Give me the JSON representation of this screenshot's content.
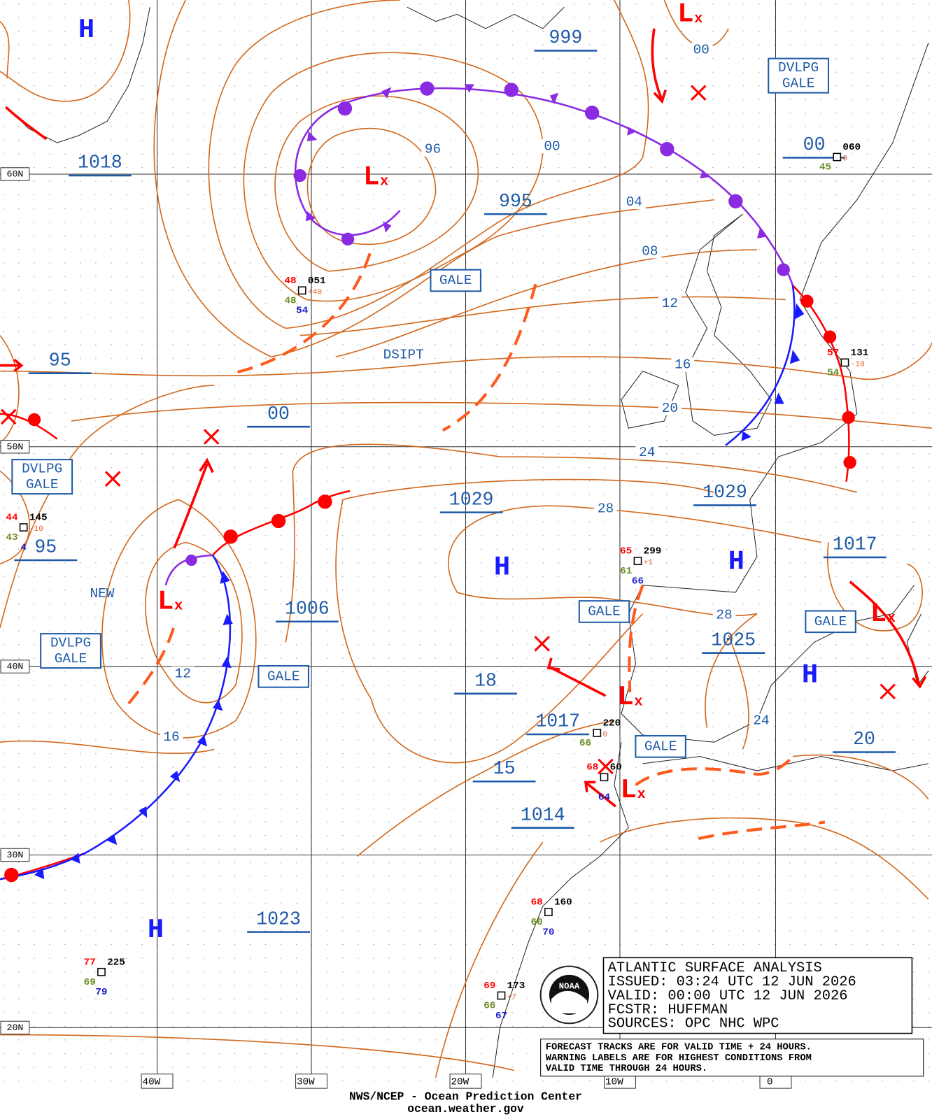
{
  "map": {
    "lat_labels": [
      "60N",
      "50N",
      "40N",
      "30N",
      "20N"
    ],
    "lon_labels": [
      "40W",
      "30W",
      "20W",
      "10W",
      "0"
    ],
    "high_symbol": "H",
    "low_symbol": "L",
    "low_mark": "x",
    "central_pressures": [
      "999",
      "995",
      "1018",
      "95",
      "00",
      "1029",
      "1029",
      "1017",
      "95",
      "1006",
      "1025",
      "18",
      "1017",
      "15",
      "1014",
      "1023",
      "20",
      "00"
    ],
    "isobar_labels": [
      "96",
      "00",
      "04",
      "08",
      "12",
      "16",
      "20",
      "24",
      "28",
      "28",
      "24",
      "12",
      "16",
      "00"
    ],
    "front_labels": [
      "DSIPT",
      "NEW"
    ],
    "warnings": {
      "gale": "GALE",
      "developing": [
        "DVLPG",
        "GALE"
      ]
    },
    "stations": [
      {
        "id": "051",
        "temp": "48",
        "dew": "48",
        "sst": "54",
        "tendency": "+40"
      },
      {
        "id": "131",
        "temp": "57",
        "dew": "54",
        "tendency": "-10"
      },
      {
        "id": "060",
        "dew": "45",
        "tendency": "0"
      },
      {
        "id": "145",
        "temp": "44",
        "dew": "43",
        "sst": "4",
        "tendency": "-10"
      },
      {
        "id": "299",
        "temp": "65",
        "dew": "61",
        "sst": "66",
        "tendency": "+1"
      },
      {
        "id": "220",
        "dew": "66",
        "tendency": "0"
      },
      {
        "id": "60",
        "temp": "68",
        "sst": "64"
      },
      {
        "id": "160",
        "temp": "68",
        "dew": "60",
        "sst": "70"
      },
      {
        "id": "173",
        "temp": "69",
        "dew": "66",
        "sst": "67",
        "tendency": "+7"
      },
      {
        "id": "225",
        "temp": "77",
        "dew": "69",
        "sst": "79"
      }
    ],
    "info_box": [
      "ATLANTIC SURFACE ANALYSIS",
      "ISSUED: 03:24 UTC 12 JUN 2026",
      "VALID:  00:00 UTC 12 JUN 2026",
      "FCSTR:  HUFFMAN",
      "SOURCES: OPC NHC WPC"
    ],
    "notes": [
      "FORECAST TRACKS ARE FOR VALID TIME + 24 HOURS.",
      "WARNING LABELS ARE FOR HIGHEST CONDITIONS FROM",
      "VALID TIME THROUGH 24 HOURS."
    ],
    "footer": [
      "NWS/NCEP - Ocean Prediction Center",
      "ocean.weather.gov"
    ],
    "logo_text": "NOAA"
  }
}
